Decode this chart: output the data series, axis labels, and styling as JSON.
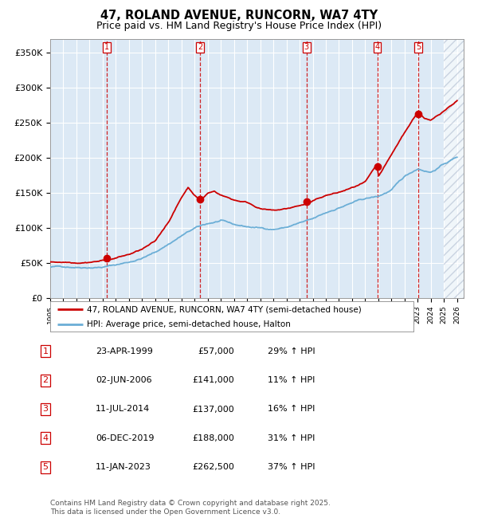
{
  "title": "47, ROLAND AVENUE, RUNCORN, WA7 4TY",
  "subtitle": "Price paid vs. HM Land Registry's House Price Index (HPI)",
  "ylabel_ticks": [
    "£0",
    "£50K",
    "£100K",
    "£150K",
    "£200K",
    "£250K",
    "£300K",
    "£350K"
  ],
  "ytick_values": [
    0,
    50000,
    100000,
    150000,
    200000,
    250000,
    300000,
    350000
  ],
  "ylim": [
    0,
    370000
  ],
  "xlim_start": 1995.0,
  "xlim_end": 2026.5,
  "sale_dates": [
    1999.31,
    2006.42,
    2014.53,
    2019.92,
    2023.03
  ],
  "sale_prices": [
    57000,
    141000,
    137000,
    188000,
    262500
  ],
  "sale_labels": [
    "1",
    "2",
    "3",
    "4",
    "5"
  ],
  "sale_info": [
    {
      "num": "1",
      "date": "23-APR-1999",
      "price": "£57,000",
      "hpi": "29% ↑ HPI"
    },
    {
      "num": "2",
      "date": "02-JUN-2006",
      "price": "£141,000",
      "hpi": "11% ↑ HPI"
    },
    {
      "num": "3",
      "date": "11-JUL-2014",
      "price": "£137,000",
      "hpi": "16% ↑ HPI"
    },
    {
      "num": "4",
      "date": "06-DEC-2019",
      "price": "£188,000",
      "hpi": "31% ↑ HPI"
    },
    {
      "num": "5",
      "date": "11-JAN-2023",
      "price": "£262,500",
      "hpi": "37% ↑ HPI"
    }
  ],
  "hpi_color": "#6baed6",
  "price_color": "#cc0000",
  "bg_color": "#dce9f5",
  "grid_color": "#ffffff",
  "hatch_color": "#b0bcd0",
  "footer": "Contains HM Land Registry data © Crown copyright and database right 2025.\nThis data is licensed under the Open Government Licence v3.0.",
  "legend_line1": "47, ROLAND AVENUE, RUNCORN, WA7 4TY (semi-detached house)",
  "legend_line2": "HPI: Average price, semi-detached house, Halton"
}
